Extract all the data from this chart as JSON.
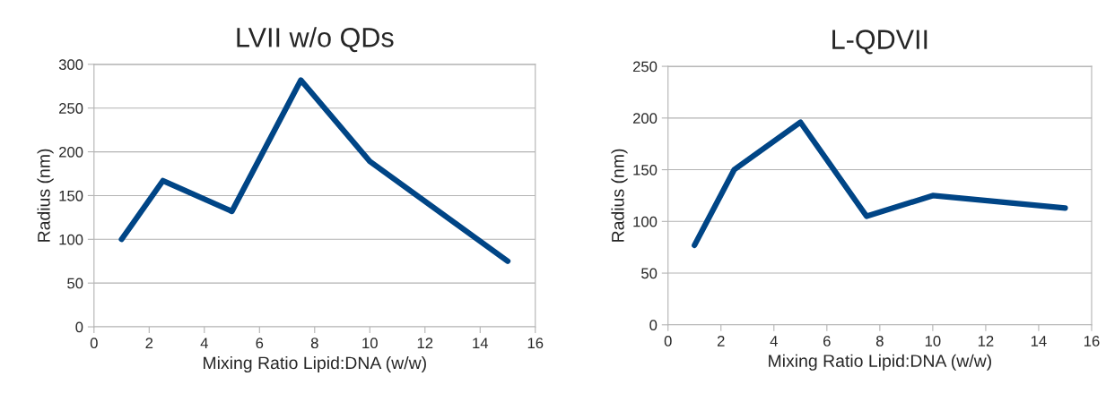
{
  "chart_data": [
    {
      "type": "line",
      "title": "LVII w/o QDs",
      "xlabel": "Mixing Ratio Lipid:DNA (w/w)",
      "ylabel": "Radius (nm)",
      "x": [
        1,
        2.5,
        5,
        7.5,
        10,
        15
      ],
      "series": [
        {
          "color": "#004586",
          "values": [
            100,
            167,
            132,
            282,
            189,
            75
          ]
        }
      ],
      "xlim": [
        0,
        16
      ],
      "xticks": [
        0,
        2,
        4,
        6,
        8,
        10,
        12,
        14,
        16
      ],
      "ylim": [
        0,
        300
      ],
      "yticks": [
        0,
        50,
        100,
        150,
        200,
        250,
        300
      ],
      "grid": "y",
      "legend": false
    },
    {
      "type": "line",
      "title": "L-QDVII",
      "xlabel": "Mixing Ratio Lipid:DNA (w/w)",
      "ylabel": "Radius (nm)",
      "x": [
        1,
        2.5,
        5,
        7.5,
        10,
        15
      ],
      "series": [
        {
          "color": "#004586",
          "values": [
            77,
            150,
            196,
            105,
            125,
            113
          ]
        }
      ],
      "xlim": [
        0,
        16
      ],
      "xticks": [
        0,
        2,
        4,
        6,
        8,
        10,
        12,
        14,
        16
      ],
      "ylim": [
        0,
        250
      ],
      "yticks": [
        0,
        50,
        100,
        150,
        200,
        250
      ],
      "grid": "y",
      "legend": false
    }
  ]
}
